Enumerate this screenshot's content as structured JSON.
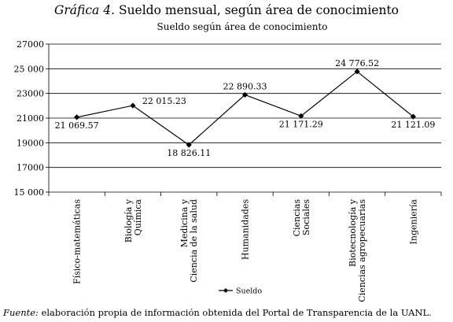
{
  "figure": {
    "label": "Gráfica 4.",
    "title": "Sueldo mensual, según área de conocimiento"
  },
  "source": {
    "label": "Fuente:",
    "text": "elaboración propia de información obtenida del Portal de Transparencia de la UANL."
  },
  "chart_data": {
    "type": "line",
    "title": "Sueldo según área de conocimiento",
    "categories": [
      "Físico-matemáticas",
      "Biología y Química",
      "Medicina y Ciencia de la salud",
      "Humanidades",
      "Ciencias Sociales",
      "Biotecnología y Ciencias agropecuarias",
      "Ingeniería"
    ],
    "category_lines": [
      [
        "Físico-matemáticas"
      ],
      [
        "Biología y",
        "Química"
      ],
      [
        "Medicina y",
        "Ciencia de la salud"
      ],
      [
        "Humanidades"
      ],
      [
        "Ciencias",
        "Sociales"
      ],
      [
        "Biotecnología y",
        "Ciencias agropecuarias"
      ],
      [
        "Ingeniería"
      ]
    ],
    "series": [
      {
        "name": "Sueldo",
        "values": [
          21069.57,
          22015.23,
          18826.11,
          22890.33,
          21171.29,
          24776.52,
          21121.09
        ],
        "labels": [
          "21 069.57",
          "22 015.23",
          "18 826.11",
          "22 890.33",
          "21 171.29",
          "24 776.52",
          "21 121.09"
        ]
      }
    ],
    "ylim": [
      15000,
      27000
    ],
    "yticks": [
      15000,
      17000,
      19000,
      21000,
      23000,
      25000,
      27000
    ],
    "ytick_labels": [
      "15 000",
      "17000",
      "19000",
      "21000",
      "23000",
      "25 000",
      "27000"
    ],
    "grid": "horizontal",
    "legend": "bottom-center",
    "line_color": "#000000"
  }
}
